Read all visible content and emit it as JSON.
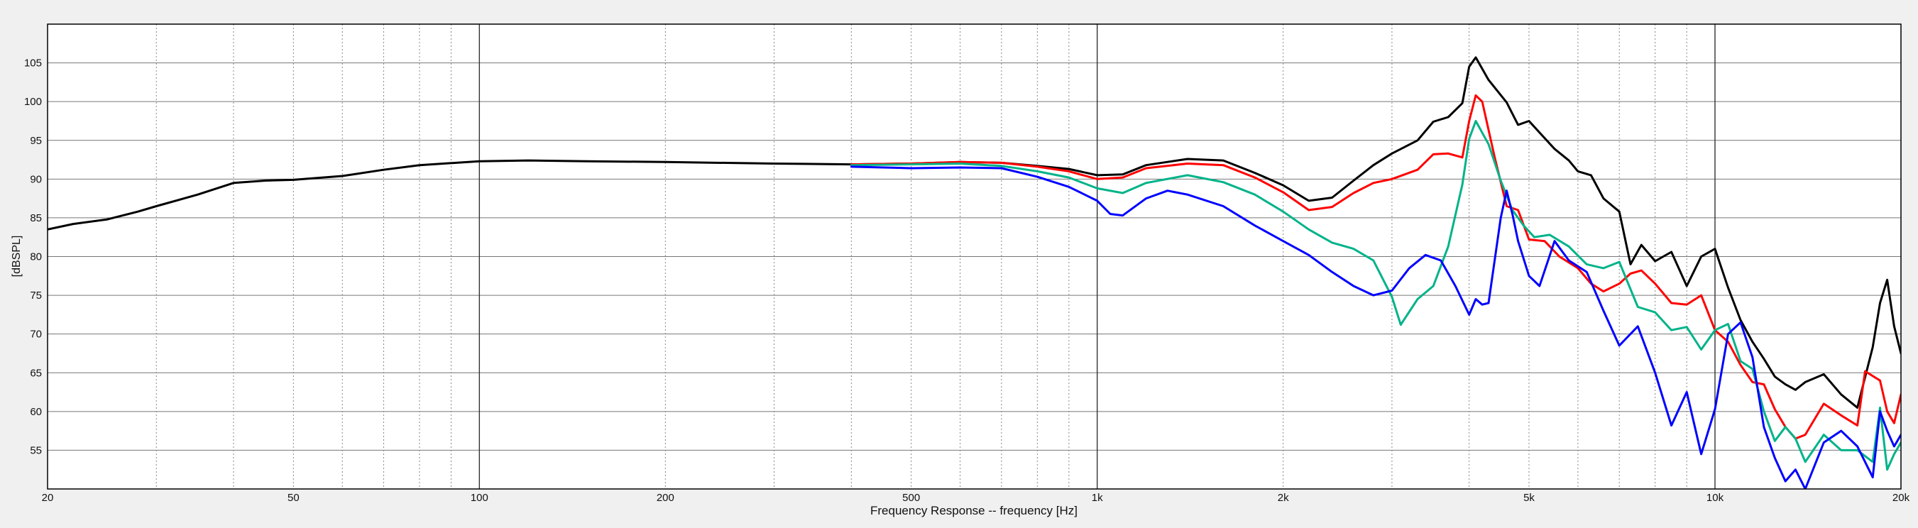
{
  "chart_data": {
    "type": "line",
    "title": "",
    "xlabel": "Frequency Response -- frequency [Hz]",
    "ylabel": "[dBSPL]",
    "x_scale": "log",
    "xlim": [
      20,
      20000
    ],
    "ylim": [
      50,
      110
    ],
    "x_ticks": [
      {
        "value": 20,
        "label": "20"
      },
      {
        "value": 50,
        "label": "50"
      },
      {
        "value": 100,
        "label": "100"
      },
      {
        "value": 200,
        "label": "200"
      },
      {
        "value": 500,
        "label": "500"
      },
      {
        "value": 1000,
        "label": "1k"
      },
      {
        "value": 2000,
        "label": "2k"
      },
      {
        "value": 5000,
        "label": "5k"
      },
      {
        "value": 10000,
        "label": "10k"
      },
      {
        "value": 20000,
        "label": "20k"
      }
    ],
    "y_ticks": [
      55,
      60,
      65,
      70,
      75,
      80,
      85,
      90,
      95,
      100,
      105
    ],
    "grid": true,
    "legend": "none",
    "series": [
      {
        "color": "#000000",
        "points": [
          [
            20,
            83.5
          ],
          [
            22,
            84.2
          ],
          [
            25,
            84.8
          ],
          [
            28,
            85.8
          ],
          [
            30,
            86.5
          ],
          [
            35,
            88
          ],
          [
            40,
            89.5
          ],
          [
            45,
            89.8
          ],
          [
            50,
            89.9
          ],
          [
            60,
            90.4
          ],
          [
            70,
            91.2
          ],
          [
            80,
            91.8
          ],
          [
            100,
            92.3
          ],
          [
            120,
            92.4
          ],
          [
            150,
            92.3
          ],
          [
            200,
            92.2
          ],
          [
            300,
            92.0
          ],
          [
            400,
            91.9
          ],
          [
            500,
            92.0
          ],
          [
            600,
            92.2
          ],
          [
            700,
            92.1
          ],
          [
            800,
            91.7
          ],
          [
            900,
            91.3
          ],
          [
            1000,
            90.5
          ],
          [
            1100,
            90.6
          ],
          [
            1200,
            91.8
          ],
          [
            1400,
            92.6
          ],
          [
            1600,
            92.4
          ],
          [
            1800,
            90.8
          ],
          [
            2000,
            89.2
          ],
          [
            2200,
            87.2
          ],
          [
            2400,
            87.6
          ],
          [
            2600,
            89.8
          ],
          [
            2800,
            91.8
          ],
          [
            3000,
            93.3
          ],
          [
            3300,
            95.0
          ],
          [
            3500,
            97.4
          ],
          [
            3700,
            98.0
          ],
          [
            3900,
            99.8
          ],
          [
            4000,
            104.5
          ],
          [
            4100,
            105.7
          ],
          [
            4300,
            102.8
          ],
          [
            4600,
            99.9
          ],
          [
            4800,
            97.0
          ],
          [
            5000,
            97.5
          ],
          [
            5200,
            96.0
          ],
          [
            5500,
            93.9
          ],
          [
            5800,
            92.4
          ],
          [
            6000,
            91.0
          ],
          [
            6300,
            90.5
          ],
          [
            6600,
            87.5
          ],
          [
            7000,
            85.8
          ],
          [
            7300,
            79.0
          ],
          [
            7600,
            81.5
          ],
          [
            8000,
            79.4
          ],
          [
            8500,
            80.6
          ],
          [
            9000,
            76.2
          ],
          [
            9500,
            80.0
          ],
          [
            10000,
            81.0
          ],
          [
            10500,
            76.0
          ],
          [
            11000,
            71.8
          ],
          [
            11500,
            69.0
          ],
          [
            12000,
            66.8
          ],
          [
            12500,
            64.5
          ],
          [
            13000,
            63.5
          ],
          [
            13500,
            62.8
          ],
          [
            14000,
            63.8
          ],
          [
            15000,
            64.8
          ],
          [
            16000,
            62.2
          ],
          [
            17000,
            60.5
          ],
          [
            18000,
            68.3
          ],
          [
            18500,
            74.0
          ],
          [
            19000,
            77.0
          ],
          [
            19500,
            71.0
          ],
          [
            20000,
            67.5
          ]
        ]
      },
      {
        "color": "#ff0000",
        "points": [
          [
            400,
            91.9
          ],
          [
            500,
            92.0
          ],
          [
            600,
            92.2
          ],
          [
            700,
            92.1
          ],
          [
            800,
            91.6
          ],
          [
            900,
            91.0
          ],
          [
            1000,
            90.0
          ],
          [
            1100,
            90.2
          ],
          [
            1200,
            91.4
          ],
          [
            1400,
            92.0
          ],
          [
            1600,
            91.8
          ],
          [
            1800,
            90.2
          ],
          [
            2000,
            88.3
          ],
          [
            2200,
            86.0
          ],
          [
            2400,
            86.4
          ],
          [
            2600,
            88.2
          ],
          [
            2800,
            89.5
          ],
          [
            3000,
            90.0
          ],
          [
            3300,
            91.2
          ],
          [
            3500,
            93.2
          ],
          [
            3700,
            93.3
          ],
          [
            3900,
            92.8
          ],
          [
            4000,
            97.5
          ],
          [
            4100,
            100.8
          ],
          [
            4200,
            100.0
          ],
          [
            4400,
            92.8
          ],
          [
            4600,
            86.5
          ],
          [
            4800,
            86.0
          ],
          [
            5000,
            82.2
          ],
          [
            5300,
            82.0
          ],
          [
            5600,
            80.0
          ],
          [
            6000,
            78.5
          ],
          [
            6300,
            76.5
          ],
          [
            6600,
            75.5
          ],
          [
            7000,
            76.5
          ],
          [
            7300,
            77.8
          ],
          [
            7600,
            78.2
          ],
          [
            8000,
            76.5
          ],
          [
            8500,
            74.0
          ],
          [
            9000,
            73.8
          ],
          [
            9500,
            75.0
          ],
          [
            10000,
            70.5
          ],
          [
            10500,
            69.0
          ],
          [
            11000,
            66.0
          ],
          [
            11500,
            63.8
          ],
          [
            12000,
            63.5
          ],
          [
            12500,
            60.3
          ],
          [
            13000,
            58.0
          ],
          [
            13500,
            56.5
          ],
          [
            14000,
            57.0
          ],
          [
            15000,
            61.0
          ],
          [
            16000,
            59.5
          ],
          [
            17000,
            58.2
          ],
          [
            17500,
            65.2
          ],
          [
            18500,
            64.0
          ],
          [
            19000,
            60.0
          ],
          [
            19500,
            58.5
          ],
          [
            20000,
            62.2
          ]
        ]
      },
      {
        "color": "#00b389",
        "points": [
          [
            400,
            91.8
          ],
          [
            500,
            91.9
          ],
          [
            600,
            92.0
          ],
          [
            700,
            91.7
          ],
          [
            800,
            91.0
          ],
          [
            900,
            90.2
          ],
          [
            1000,
            88.8
          ],
          [
            1100,
            88.2
          ],
          [
            1200,
            89.5
          ],
          [
            1400,
            90.5
          ],
          [
            1600,
            89.6
          ],
          [
            1800,
            88.0
          ],
          [
            2000,
            85.8
          ],
          [
            2200,
            83.5
          ],
          [
            2400,
            81.8
          ],
          [
            2600,
            81.0
          ],
          [
            2800,
            79.5
          ],
          [
            3000,
            74.8
          ],
          [
            3100,
            71.2
          ],
          [
            3300,
            74.5
          ],
          [
            3500,
            76.2
          ],
          [
            3700,
            81.3
          ],
          [
            3900,
            89.3
          ],
          [
            4000,
            95.2
          ],
          [
            4100,
            97.5
          ],
          [
            4300,
            94.5
          ],
          [
            4500,
            89.8
          ],
          [
            4700,
            86.0
          ],
          [
            4900,
            84.0
          ],
          [
            5100,
            82.5
          ],
          [
            5400,
            82.8
          ],
          [
            5800,
            81.3
          ],
          [
            6200,
            79.0
          ],
          [
            6600,
            78.5
          ],
          [
            7000,
            79.3
          ],
          [
            7500,
            73.5
          ],
          [
            8000,
            72.8
          ],
          [
            8500,
            70.5
          ],
          [
            9000,
            70.9
          ],
          [
            9500,
            68.0
          ],
          [
            10000,
            70.5
          ],
          [
            10500,
            71.3
          ],
          [
            11000,
            66.5
          ],
          [
            11500,
            65.5
          ],
          [
            12000,
            60.0
          ],
          [
            12500,
            56.2
          ],
          [
            13000,
            58.0
          ],
          [
            13500,
            56.5
          ],
          [
            14000,
            53.5
          ],
          [
            15000,
            57.0
          ],
          [
            16000,
            55.0
          ],
          [
            17000,
            55.0
          ],
          [
            18000,
            53.5
          ],
          [
            18500,
            60.5
          ],
          [
            19000,
            52.5
          ],
          [
            19500,
            54.5
          ],
          [
            20000,
            56.0
          ]
        ]
      },
      {
        "color": "#0000ff",
        "points": [
          [
            400,
            91.6
          ],
          [
            500,
            91.4
          ],
          [
            600,
            91.5
          ],
          [
            700,
            91.4
          ],
          [
            800,
            90.3
          ],
          [
            900,
            89.0
          ],
          [
            1000,
            87.2
          ],
          [
            1050,
            85.5
          ],
          [
            1100,
            85.3
          ],
          [
            1200,
            87.5
          ],
          [
            1300,
            88.5
          ],
          [
            1400,
            88.0
          ],
          [
            1600,
            86.5
          ],
          [
            1800,
            84.0
          ],
          [
            2000,
            82.0
          ],
          [
            2200,
            80.2
          ],
          [
            2400,
            78.0
          ],
          [
            2600,
            76.2
          ],
          [
            2800,
            75.0
          ],
          [
            3000,
            75.6
          ],
          [
            3200,
            78.5
          ],
          [
            3400,
            80.2
          ],
          [
            3600,
            79.5
          ],
          [
            3800,
            76.2
          ],
          [
            4000,
            72.5
          ],
          [
            4100,
            74.5
          ],
          [
            4200,
            73.8
          ],
          [
            4300,
            74.0
          ],
          [
            4500,
            85.0
          ],
          [
            4600,
            88.5
          ],
          [
            4700,
            85.5
          ],
          [
            4800,
            82.0
          ],
          [
            5000,
            77.5
          ],
          [
            5200,
            76.2
          ],
          [
            5500,
            82.0
          ],
          [
            5800,
            79.5
          ],
          [
            6200,
            78.0
          ],
          [
            6600,
            73.0
          ],
          [
            7000,
            68.5
          ],
          [
            7500,
            71.0
          ],
          [
            8000,
            65.0
          ],
          [
            8500,
            58.2
          ],
          [
            9000,
            62.5
          ],
          [
            9500,
            54.5
          ],
          [
            10000,
            60.3
          ],
          [
            10500,
            70.0
          ],
          [
            11000,
            71.5
          ],
          [
            11500,
            67.0
          ],
          [
            12000,
            58.0
          ],
          [
            12500,
            54.0
          ],
          [
            13000,
            51.0
          ],
          [
            13500,
            52.5
          ],
          [
            14000,
            50.0
          ],
          [
            15000,
            56.0
          ],
          [
            16000,
            57.5
          ],
          [
            17000,
            55.5
          ],
          [
            18000,
            51.5
          ],
          [
            18500,
            60.0
          ],
          [
            19000,
            57.5
          ],
          [
            19500,
            55.5
          ],
          [
            20000,
            57.0
          ]
        ]
      }
    ]
  }
}
